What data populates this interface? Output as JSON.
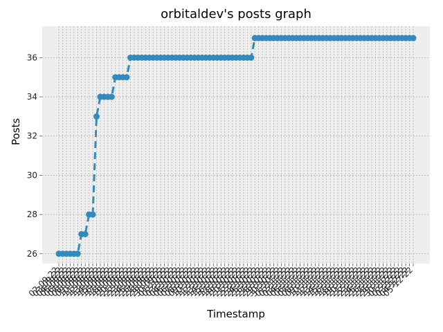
{
  "chart_data": {
    "type": "line",
    "title": "orbitaldev's posts graph",
    "xlabel": "Timestamp",
    "ylabel": "Posts",
    "ylim": [
      25.5,
      37.6
    ],
    "yticks": [
      26,
      28,
      30,
      32,
      34,
      36
    ],
    "grid": true,
    "colors": {
      "series": "#348ABD",
      "axes_bg": "#EEEEEE",
      "grid": "#B0B0B0"
    },
    "x": [
      "02-09-22",
      "03-09-22",
      "04-09-22",
      "05-09-22",
      "06-09-22",
      "07-09-22",
      "08-09-22",
      "09-09-22",
      "10-09-22",
      "11-09-22",
      "12-09-22",
      "13-09-22",
      "14-09-22",
      "15-09-22",
      "16-09-22",
      "17-09-22",
      "18-09-22",
      "19-09-22",
      "20-09-22",
      "21-09-22",
      "22-09-22",
      "23-09-22",
      "24-09-22",
      "25-09-22",
      "26-09-22",
      "27-09-22",
      "28-09-22",
      "29-09-22",
      "30-09-22",
      "01-10-22",
      "02-10-22",
      "03-10-22",
      "04-10-22",
      "05-10-22",
      "06-10-22",
      "07-10-22",
      "08-10-22",
      "09-10-22",
      "10-10-22",
      "11-10-22",
      "12-10-22",
      "13-10-22",
      "14-10-22",
      "15-10-22",
      "16-10-22",
      "17-10-22",
      "18-10-22",
      "19-10-22",
      "20-10-22",
      "21-10-22",
      "22-10-22",
      "23-10-22",
      "24-10-22",
      "25-10-22",
      "26-10-22",
      "27-10-22",
      "28-10-22",
      "29-10-22",
      "30-10-22",
      "31-10-22",
      "01-11-22",
      "02-11-22",
      "03-11-22",
      "04-11-22",
      "05-11-22",
      "06-11-22",
      "07-11-22",
      "08-11-22",
      "09-11-22",
      "10-11-22",
      "11-11-22",
      "12-11-22",
      "13-11-22",
      "14-11-22",
      "15-11-22",
      "16-11-22",
      "17-11-22",
      "18-11-22",
      "19-11-22",
      "20-11-22",
      "21-11-22",
      "22-11-22",
      "23-11-22",
      "24-11-22",
      "25-11-22",
      "26-11-22",
      "27-11-22",
      "28-11-22",
      "29-11-22",
      "30-11-22",
      "01-12-22",
      "02-12-22",
      "03-12-22",
      "04-12-22",
      "05-12-22"
    ],
    "series": [
      {
        "values": [
          26,
          26,
          26,
          26,
          26,
          26,
          27,
          27,
          28,
          28,
          33,
          34,
          34,
          34,
          34,
          35,
          35,
          35,
          35,
          36,
          36,
          36,
          36,
          36,
          36,
          36,
          36,
          36,
          36,
          36,
          36,
          36,
          36,
          36,
          36,
          36,
          36,
          36,
          36,
          36,
          36,
          36,
          36,
          36,
          36,
          36,
          36,
          36,
          36,
          36,
          36,
          36,
          37,
          37,
          37,
          37,
          37,
          37,
          37,
          37,
          37,
          37,
          37,
          37,
          37,
          37,
          37,
          37,
          37,
          37,
          37,
          37,
          37,
          37,
          37,
          37,
          37,
          37,
          37,
          37,
          37,
          37,
          37,
          37,
          37,
          37,
          37,
          37,
          37,
          37,
          37,
          37,
          37,
          37,
          37
        ]
      }
    ]
  }
}
